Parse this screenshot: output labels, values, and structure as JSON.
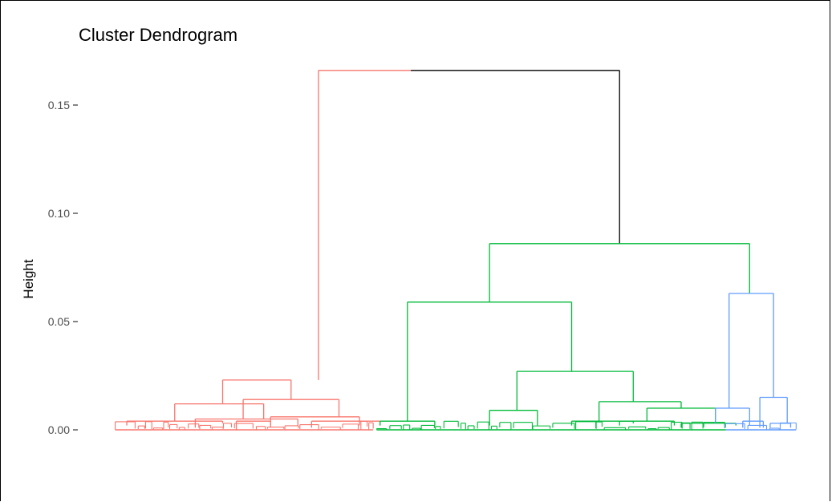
{
  "chart_data": {
    "type": "dendrogram",
    "title": "Cluster Dendrogram",
    "xlabel": "",
    "ylabel": "Height",
    "ylim": [
      -0.012,
      0.172
    ],
    "yticks": [
      0.0,
      0.05,
      0.1,
      0.15
    ],
    "ytick_labels": [
      "0.00",
      "0.05",
      "0.10",
      "0.15"
    ],
    "grid": false,
    "colors": {
      "cluster1": "#F8766D",
      "cluster2": "#00BA38",
      "cluster3": "#619CFF",
      "root": "#000000"
    },
    "x_range": [
      0,
      100
    ],
    "merges": [
      {
        "cluster": "root",
        "height": 0.166,
        "left_x": 30.0,
        "right_x": 74.0,
        "left_h": 0.023,
        "right_h": 0.086,
        "split_x": 43.5
      },
      {
        "cluster": "cluster2",
        "height": 0.086,
        "left_x": 55.0,
        "right_x": 93.0,
        "left_h": 0.059,
        "right_h": 0.063
      },
      {
        "cluster": "cluster2",
        "height": 0.059,
        "left_x": 43.0,
        "right_x": 67.0,
        "left_h": 0.004,
        "right_h": 0.027
      },
      {
        "cluster": "cluster2",
        "height": 0.027,
        "left_x": 59.0,
        "right_x": 76.0,
        "left_h": 0.009,
        "right_h": 0.013
      },
      {
        "cluster": "cluster2",
        "height": 0.013,
        "left_x": 71.0,
        "right_x": 83.0,
        "left_h": 0.004,
        "right_h": 0.01
      },
      {
        "cluster": "cluster2",
        "height": 0.01,
        "left_x": 78.0,
        "right_x": 88.0,
        "left_h": 0.004,
        "right_h": 0.003
      },
      {
        "cluster": "cluster3",
        "height": 0.063,
        "left_x": 90.0,
        "right_x": 96.5,
        "left_h": 0.01,
        "right_h": 0.015
      },
      {
        "cluster": "cluster1",
        "height": 0.023,
        "left_x": 16.0,
        "right_x": 26.0,
        "left_h": 0.012,
        "right_h": 0.014
      },
      {
        "cluster": "cluster1",
        "height": 0.014,
        "left_x": 19.0,
        "right_x": 33.0,
        "left_h": 0.005,
        "right_h": 0.006
      },
      {
        "cluster": "cluster1",
        "height": 0.012,
        "left_x": 9.0,
        "right_x": 22.0,
        "left_h": 0.004,
        "right_h": 0.005
      }
    ]
  }
}
